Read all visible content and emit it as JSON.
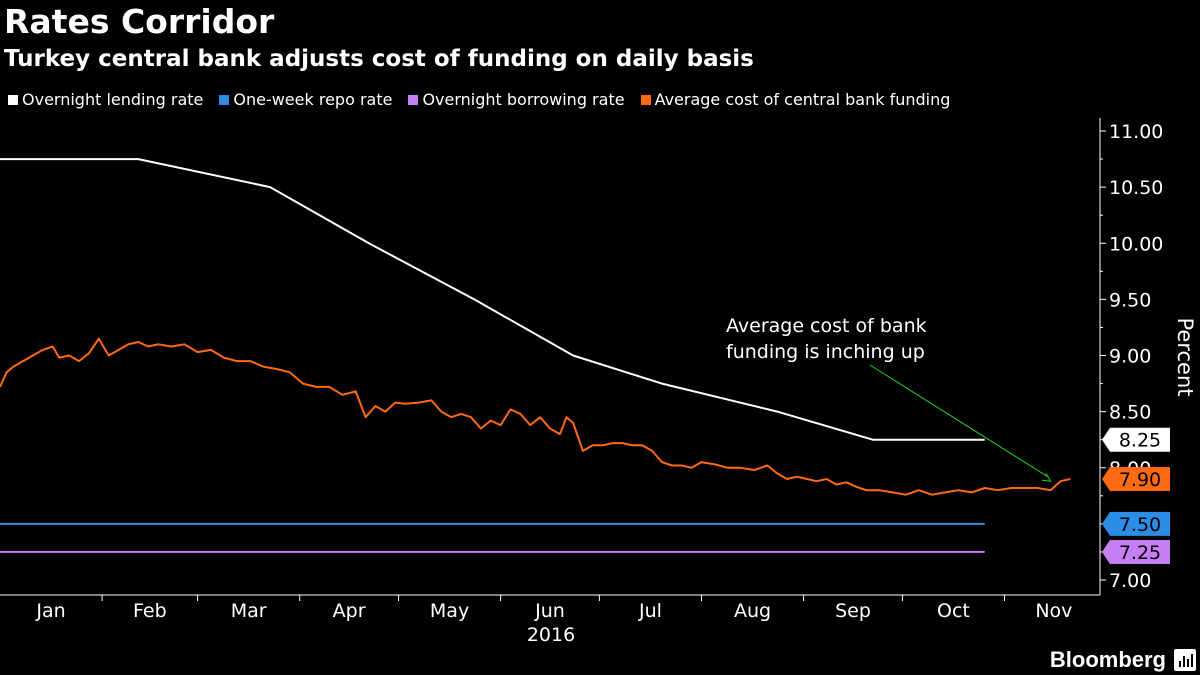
{
  "title": "Rates Corridor",
  "subtitle": "Turkey central bank adjusts cost of funding on daily basis",
  "brand": "Bloomberg",
  "brand_icon": "bloomberg-chart-icon",
  "colors": {
    "background": "#000000",
    "lending": "#ffffff",
    "repo": "#2b8de6",
    "borrowing": "#c77ff5",
    "funding": "#ff6a13",
    "annotation_arrow": "#20d020",
    "axis": "#ffffff"
  },
  "chart_data": {
    "type": "line",
    "xlabel": "2016",
    "ylabel": "Percent",
    "ylim": [
      7.0,
      11.0
    ],
    "y_ticks": [
      "7.00",
      "7.50",
      "8.00",
      "8.50",
      "9.00",
      "9.50",
      "10.00",
      "10.50",
      "11.00"
    ],
    "x_ticks": [
      "Jan",
      "Feb",
      "Mar",
      "Apr",
      "May",
      "Jun",
      "Jul",
      "Aug",
      "Sep",
      "Oct",
      "Nov"
    ],
    "legend_position": "top",
    "grid": false,
    "series": [
      {
        "name": "Overnight lending rate",
        "color": "#ffffff",
        "end_label": "8.25",
        "points": [
          [
            "2016-01-01",
            10.75
          ],
          [
            "2016-02-12",
            10.75
          ],
          [
            "2016-03-23",
            10.5
          ],
          [
            "2016-04-22",
            10.0
          ],
          [
            "2016-05-24",
            9.5
          ],
          [
            "2016-06-23",
            9.0
          ],
          [
            "2016-07-20",
            8.75
          ],
          [
            "2016-08-24",
            8.5
          ],
          [
            "2016-09-22",
            8.25
          ],
          [
            "2016-10-26",
            8.25
          ]
        ]
      },
      {
        "name": "One-week repo rate",
        "color": "#2b8de6",
        "end_label": "7.50",
        "points": [
          [
            "2016-01-01",
            7.5
          ],
          [
            "2016-10-26",
            7.5
          ]
        ]
      },
      {
        "name": "Overnight borrowing rate",
        "color": "#c77ff5",
        "end_label": "7.25",
        "points": [
          [
            "2016-01-01",
            7.25
          ],
          [
            "2016-10-26",
            7.25
          ]
        ]
      },
      {
        "name": "Average cost of central bank funding",
        "color": "#ff6a13",
        "end_label": "7.90",
        "points": [
          [
            "2016-01-01",
            8.72
          ],
          [
            "2016-01-03",
            8.85
          ],
          [
            "2016-01-05",
            8.9
          ],
          [
            "2016-01-08",
            8.95
          ],
          [
            "2016-01-11",
            9.0
          ],
          [
            "2016-01-14",
            9.05
          ],
          [
            "2016-01-17",
            9.08
          ],
          [
            "2016-01-19",
            8.98
          ],
          [
            "2016-01-22",
            9.0
          ],
          [
            "2016-01-25",
            8.95
          ],
          [
            "2016-01-28",
            9.02
          ],
          [
            "2016-01-31",
            9.15
          ],
          [
            "2016-02-03",
            9.0
          ],
          [
            "2016-02-06",
            9.05
          ],
          [
            "2016-02-09",
            9.1
          ],
          [
            "2016-02-12",
            9.12
          ],
          [
            "2016-02-15",
            9.08
          ],
          [
            "2016-02-18",
            9.1
          ],
          [
            "2016-02-22",
            9.08
          ],
          [
            "2016-02-26",
            9.1
          ],
          [
            "2016-03-01",
            9.03
          ],
          [
            "2016-03-05",
            9.05
          ],
          [
            "2016-03-09",
            8.98
          ],
          [
            "2016-03-13",
            8.95
          ],
          [
            "2016-03-17",
            8.95
          ],
          [
            "2016-03-21",
            8.9
          ],
          [
            "2016-03-25",
            8.88
          ],
          [
            "2016-03-29",
            8.85
          ],
          [
            "2016-04-02",
            8.75
          ],
          [
            "2016-04-06",
            8.72
          ],
          [
            "2016-04-10",
            8.72
          ],
          [
            "2016-04-14",
            8.65
          ],
          [
            "2016-04-18",
            8.68
          ],
          [
            "2016-04-21",
            8.45
          ],
          [
            "2016-04-24",
            8.55
          ],
          [
            "2016-04-27",
            8.5
          ],
          [
            "2016-04-30",
            8.58
          ],
          [
            "2016-05-03",
            8.57
          ],
          [
            "2016-05-07",
            8.58
          ],
          [
            "2016-05-11",
            8.6
          ],
          [
            "2016-05-14",
            8.5
          ],
          [
            "2016-05-17",
            8.45
          ],
          [
            "2016-05-20",
            8.48
          ],
          [
            "2016-05-23",
            8.45
          ],
          [
            "2016-05-26",
            8.35
          ],
          [
            "2016-05-29",
            8.42
          ],
          [
            "2016-06-01",
            8.38
          ],
          [
            "2016-06-04",
            8.52
          ],
          [
            "2016-06-07",
            8.48
          ],
          [
            "2016-06-10",
            8.38
          ],
          [
            "2016-06-13",
            8.45
          ],
          [
            "2016-06-16",
            8.35
          ],
          [
            "2016-06-19",
            8.3
          ],
          [
            "2016-06-21",
            8.45
          ],
          [
            "2016-06-23",
            8.4
          ],
          [
            "2016-06-26",
            8.15
          ],
          [
            "2016-06-29",
            8.2
          ],
          [
            "2016-07-02",
            8.2
          ],
          [
            "2016-07-05",
            8.22
          ],
          [
            "2016-07-08",
            8.22
          ],
          [
            "2016-07-11",
            8.2
          ],
          [
            "2016-07-14",
            8.2
          ],
          [
            "2016-07-17",
            8.15
          ],
          [
            "2016-07-20",
            8.05
          ],
          [
            "2016-07-23",
            8.02
          ],
          [
            "2016-07-26",
            8.02
          ],
          [
            "2016-07-29",
            8.0
          ],
          [
            "2016-08-01",
            8.05
          ],
          [
            "2016-08-05",
            8.03
          ],
          [
            "2016-08-09",
            8.0
          ],
          [
            "2016-08-13",
            8.0
          ],
          [
            "2016-08-17",
            7.98
          ],
          [
            "2016-08-21",
            8.02
          ],
          [
            "2016-08-24",
            7.95
          ],
          [
            "2016-08-27",
            7.9
          ],
          [
            "2016-08-30",
            7.92
          ],
          [
            "2016-09-02",
            7.9
          ],
          [
            "2016-09-05",
            7.88
          ],
          [
            "2016-09-08",
            7.9
          ],
          [
            "2016-09-11",
            7.85
          ],
          [
            "2016-09-14",
            7.87
          ],
          [
            "2016-09-17",
            7.83
          ],
          [
            "2016-09-20",
            7.8
          ],
          [
            "2016-09-24",
            7.8
          ],
          [
            "2016-09-28",
            7.78
          ],
          [
            "2016-10-02",
            7.76
          ],
          [
            "2016-10-06",
            7.8
          ],
          [
            "2016-10-10",
            7.76
          ],
          [
            "2016-10-14",
            7.78
          ],
          [
            "2016-10-18",
            7.8
          ],
          [
            "2016-10-22",
            7.78
          ],
          [
            "2016-10-26",
            7.82
          ],
          [
            "2016-10-30",
            7.8
          ],
          [
            "2016-11-03",
            7.82
          ],
          [
            "2016-11-07",
            7.82
          ],
          [
            "2016-11-11",
            7.82
          ],
          [
            "2016-11-15",
            7.8
          ],
          [
            "2016-11-18",
            7.88
          ],
          [
            "2016-11-21",
            7.9
          ]
        ]
      }
    ],
    "annotations": [
      {
        "lines": [
          "Average cost of bank",
          "funding is inching up"
        ],
        "arrow_to": [
          "2016-11-15",
          7.88
        ]
      }
    ]
  }
}
